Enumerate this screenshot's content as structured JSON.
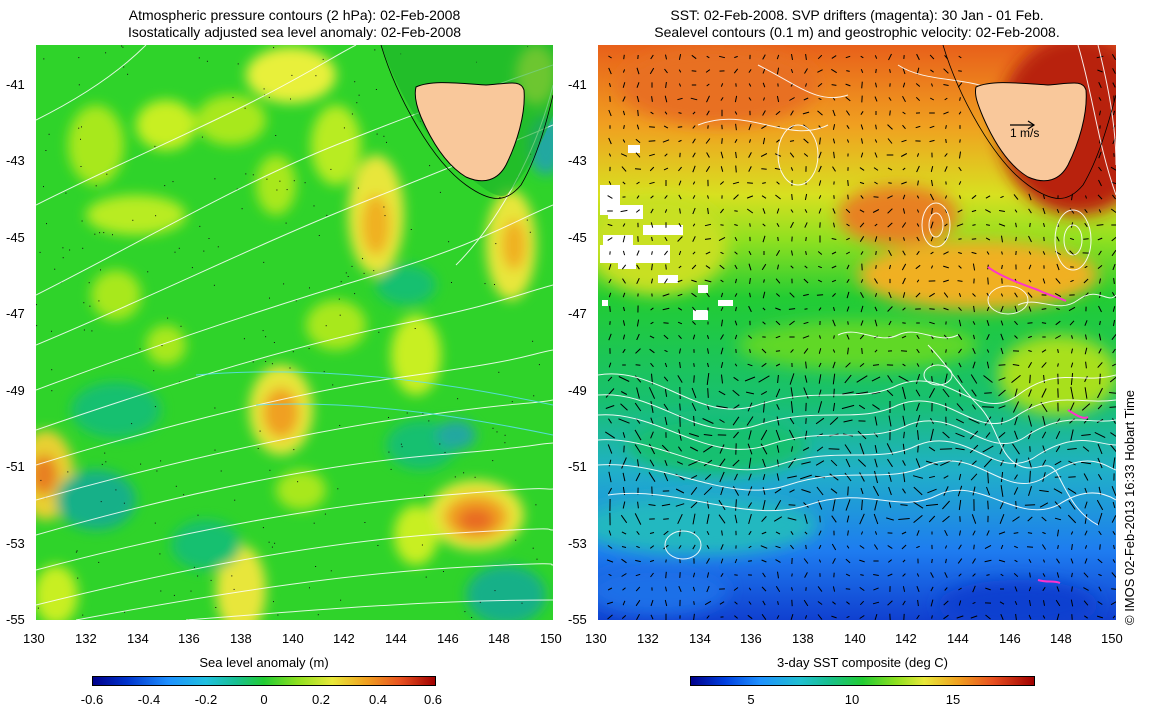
{
  "left_panel": {
    "title_line1": "Atmospheric pressure contours (2 hPa): 02-Feb-2008",
    "title_line2": "Isostatically adjusted sea level anomaly: 02-Feb-2008",
    "x_ticks": [
      "130",
      "132",
      "134",
      "136",
      "138",
      "140",
      "142",
      "144",
      "146",
      "148",
      "150"
    ],
    "y_ticks": [
      "-41",
      "-43",
      "-45",
      "-47",
      "-49",
      "-51",
      "-53",
      "-55"
    ],
    "colorbar": {
      "title": "Sea level anomaly (m)",
      "ticks": [
        "-0.6",
        "-0.4",
        "-0.2",
        "0",
        "0.2",
        "0.4",
        "0.6"
      ],
      "range": [
        -0.6,
        0.6
      ]
    }
  },
  "right_panel": {
    "title_line1": "SST: 02-Feb-2008. SVP drifters (magenta): 30 Jan - 01 Feb.",
    "title_line2": "Sealevel contours (0.1 m) and geostrophic velocity: 02-Feb-2008.",
    "x_ticks": [
      "130",
      "132",
      "134",
      "136",
      "138",
      "140",
      "142",
      "144",
      "146",
      "148",
      "150"
    ],
    "y_ticks": [
      "-41",
      "-43",
      "-45",
      "-47",
      "-49",
      "-51",
      "-53",
      "-55"
    ],
    "velocity_scale_label": "1 m/s",
    "colorbar": {
      "title": "3-day SST composite (deg C)",
      "ticks": [
        "5",
        "10",
        "15"
      ],
      "range": [
        2,
        19
      ]
    }
  },
  "credit": "© IMOS 02-Feb-2013 16:33 Hobart Time",
  "colors": {
    "land": "#f9c89b",
    "sla_background": "#2fd32a",
    "contour": "#ffffff",
    "drifter": "#ff33cc"
  }
}
